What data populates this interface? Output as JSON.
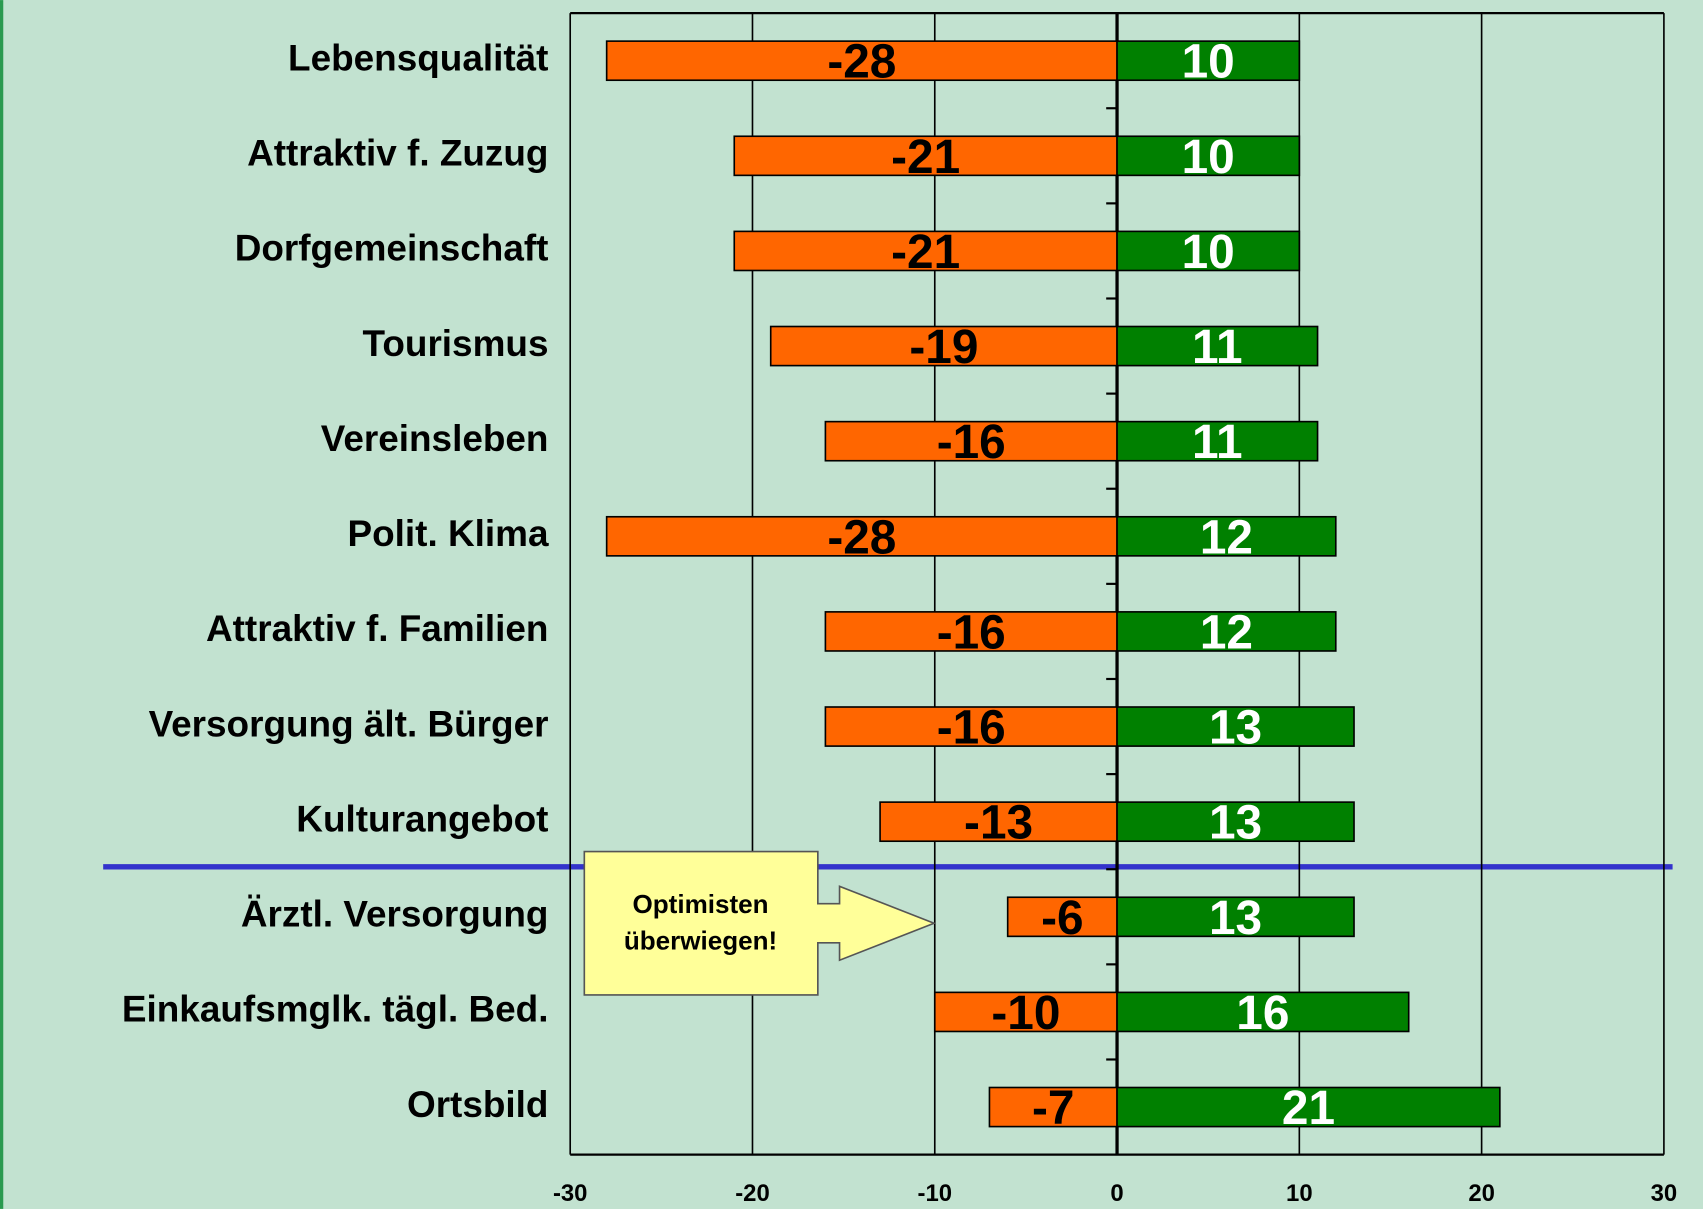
{
  "chart_data": {
    "type": "diverging-bar",
    "categories": [
      "Lebensqualität",
      "Attraktiv f. Zuzug",
      "Dorfgemeinschaft",
      "Tourismus",
      "Vereinsleben",
      "Polit. Klima",
      "Attraktiv f. Familien",
      "Versorgung ält. Bürger",
      "Kulturangebot",
      "Ärztl. Versorgung",
      "Einkaufsmglk. tägl. Bed.",
      "Ortsbild"
    ],
    "series": [
      {
        "color": "#ff6600",
        "label_color": "#000000",
        "values": [
          -28,
          -21,
          -21,
          -19,
          -16,
          -28,
          -16,
          -16,
          -13,
          -6,
          -10,
          -7
        ]
      },
      {
        "color": "#008000",
        "label_color": "#ffffff",
        "values": [
          10,
          10,
          10,
          11,
          11,
          12,
          12,
          13,
          13,
          13,
          16,
          21
        ]
      }
    ],
    "xlim": [
      -30,
      30
    ],
    "xticks": [
      -30,
      -20,
      -10,
      0,
      10,
      20,
      30
    ],
    "grid": true,
    "annotation": [
      "Optimisten",
      "überwiegen!"
    ]
  }
}
